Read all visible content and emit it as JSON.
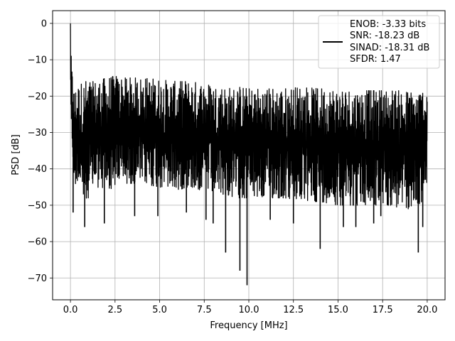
{
  "chart_data": {
    "type": "line",
    "title": "",
    "xlabel": "Frequency [MHz]",
    "ylabel": "PSD [dB]",
    "xlim": [
      -1.0,
      21.0
    ],
    "ylim": [
      -76,
      3.5
    ],
    "grid": true,
    "legend_placement": "top-right",
    "x_ticks": [
      0.0,
      2.5,
      5.0,
      7.5,
      10.0,
      12.5,
      15.0,
      17.5,
      20.0
    ],
    "x_tick_labels": [
      "0.0",
      "2.5",
      "5.0",
      "7.5",
      "10.0",
      "12.5",
      "15.0",
      "17.5",
      "20.0"
    ],
    "y_ticks": [
      0,
      -10,
      -20,
      -30,
      -40,
      -50,
      -60,
      -70
    ],
    "y_tick_labels": [
      "0",
      "−10",
      "−20",
      "−30",
      "−40",
      "−50",
      "−60",
      "−70"
    ],
    "line_color": "#000000",
    "grid_color": "#b0b0b0",
    "series": [
      {
        "legend_lines": [
          "ENOB: -3.33 bits",
          "SNR: -18.23 dB",
          "SINAD: -18.31 dB",
          "SFDR: 1.47"
        ],
        "x": [
          0.0,
          0.03,
          0.06,
          0.1,
          0.15,
          0.2,
          0.3,
          0.4,
          0.5,
          0.75,
          1.0,
          1.5,
          2.0,
          2.5,
          3.0,
          4.0,
          5.0,
          6.0,
          6.5,
          7.5,
          8.0,
          8.7,
          9.0,
          9.6,
          9.9,
          11.0,
          12.0,
          13.0,
          14.0,
          15.0,
          16.0,
          17.0,
          18.0,
          18.5,
          19.0,
          19.6,
          20.0
        ],
        "upper": [
          0,
          -7,
          -12,
          -13,
          -15,
          -18,
          -18,
          -17,
          -17,
          -16,
          -16,
          -16,
          -15,
          -14.5,
          -15,
          -15,
          -15.5,
          -16,
          -16,
          -16.5,
          -17,
          -17.5,
          -18,
          -17.5,
          -18,
          -18,
          -18,
          -17.5,
          -18,
          -18,
          -18.5,
          -18.5,
          -18.5,
          -18.5,
          -19,
          -18.5,
          -17
        ],
        "lower": [
          -14,
          -25,
          -30,
          -35,
          -40,
          -42,
          -45,
          -43,
          -45,
          -50,
          -48,
          -45,
          -46,
          -45,
          -44,
          -44,
          -45,
          -46,
          -45,
          -46,
          -47,
          -47,
          -48,
          -48,
          -48,
          -48,
          -48,
          -49,
          -49,
          -50,
          -50,
          -50,
          -50,
          -51,
          -51,
          -50,
          -45
        ],
        "spikes": [
          {
            "x": 0.15,
            "y": -52
          },
          {
            "x": 0.8,
            "y": -56
          },
          {
            "x": 1.9,
            "y": -55
          },
          {
            "x": 3.6,
            "y": -53
          },
          {
            "x": 4.9,
            "y": -53
          },
          {
            "x": 6.5,
            "y": -52
          },
          {
            "x": 7.6,
            "y": -54
          },
          {
            "x": 8.0,
            "y": -55
          },
          {
            "x": 8.7,
            "y": -63
          },
          {
            "x": 9.5,
            "y": -68
          },
          {
            "x": 9.9,
            "y": -72
          },
          {
            "x": 11.2,
            "y": -54
          },
          {
            "x": 12.5,
            "y": -55
          },
          {
            "x": 14.0,
            "y": -62
          },
          {
            "x": 15.3,
            "y": -56
          },
          {
            "x": 16.0,
            "y": -56
          },
          {
            "x": 17.0,
            "y": -55
          },
          {
            "x": 17.4,
            "y": -53
          },
          {
            "x": 19.5,
            "y": -63
          },
          {
            "x": 19.75,
            "y": -56
          }
        ]
      }
    ]
  }
}
